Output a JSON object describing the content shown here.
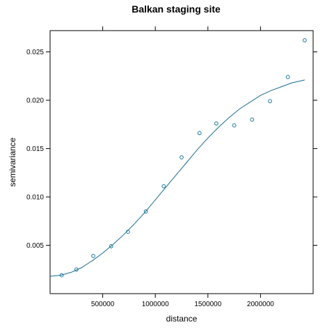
{
  "chart_data": {
    "type": "scatter",
    "title": "Balkan staging site",
    "xlabel": "distance",
    "ylabel": "semivariance",
    "xlim": [
      0,
      2500000
    ],
    "ylim": [
      0,
      0.0272
    ],
    "x_ticks": [
      500000,
      1000000,
      1500000,
      2000000
    ],
    "x_tick_labels": [
      "500000",
      "1000000",
      "1500000",
      "2000000"
    ],
    "y_ticks": [
      0.005,
      0.01,
      0.015,
      0.02,
      0.025
    ],
    "y_tick_labels": [
      "0.005",
      "0.010",
      "0.015",
      "0.020",
      "0.025"
    ],
    "grid": false,
    "point_color": "#1a7a99",
    "line_color": "#1a6a8f",
    "series": [
      {
        "kind": "points",
        "x": [
          110000,
          250000,
          410000,
          580000,
          740000,
          910000,
          1080000,
          1250000,
          1420000,
          1580000,
          1750000,
          1920000,
          2090000,
          2260000,
          2420000
        ],
        "y": [
          0.0019,
          0.0025,
          0.0039,
          0.0049,
          0.0064,
          0.0085,
          0.0111,
          0.0141,
          0.0166,
          0.0176,
          0.0174,
          0.018,
          0.0199,
          0.0224,
          0.0262
        ]
      },
      {
        "kind": "fitted-line",
        "x": [
          0,
          100000,
          200000,
          300000,
          400000,
          500000,
          600000,
          700000,
          800000,
          900000,
          1000000,
          1100000,
          1200000,
          1300000,
          1400000,
          1500000,
          1600000,
          1700000,
          1800000,
          1900000,
          2000000,
          2100000,
          2200000,
          2300000,
          2420000
        ],
        "y": [
          0.0018,
          0.0019,
          0.0022,
          0.0027,
          0.0034,
          0.0042,
          0.0051,
          0.0061,
          0.0072,
          0.0084,
          0.0097,
          0.011,
          0.0123,
          0.0136,
          0.0149,
          0.0161,
          0.0172,
          0.0182,
          0.0191,
          0.0198,
          0.0205,
          0.021,
          0.0214,
          0.0218,
          0.0221
        ]
      }
    ]
  }
}
